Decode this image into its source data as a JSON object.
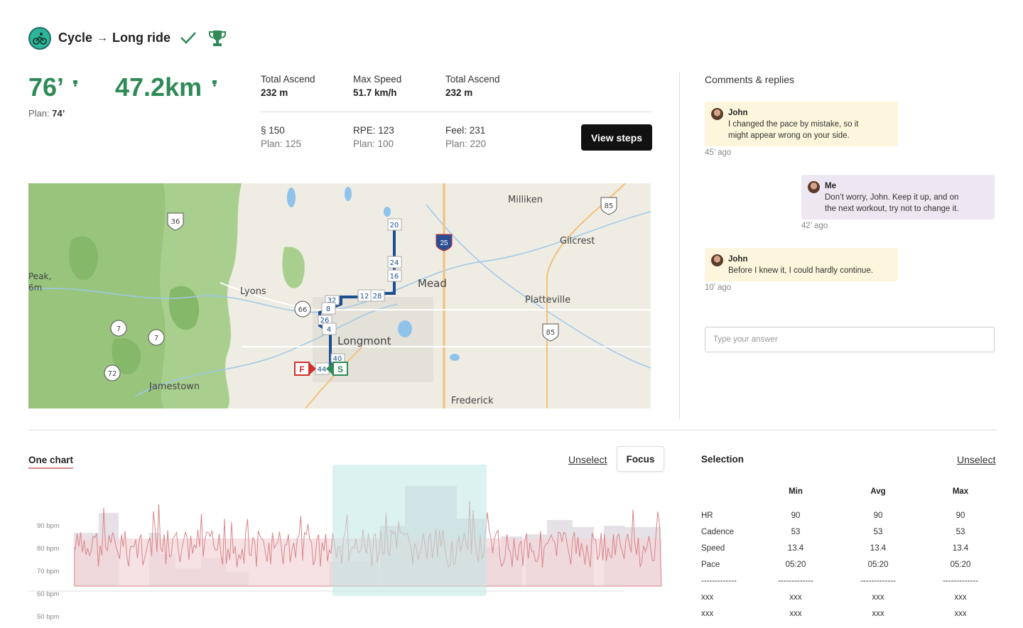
{
  "header": {
    "sport": "Cycle",
    "arrow": "→",
    "title": "Long ride"
  },
  "stats": {
    "duration": "76’",
    "distance": "47.2km",
    "plan_label": "Plan:",
    "plan_value": "74’"
  },
  "metrics_top": [
    {
      "label": "Total Ascend",
      "value": "232 m"
    },
    {
      "label": "Max Speed",
      "value": "51.7 km/h"
    },
    {
      "label": "Total Ascend",
      "value": "232 m"
    }
  ],
  "metrics_bottom": [
    {
      "value": "§ 150",
      "plan": "Plan: 125"
    },
    {
      "value": "RPE: 123",
      "plan": "Plan: 100"
    },
    {
      "value": "Feel: 231",
      "plan": "Plan: 220"
    }
  ],
  "view_steps_label": "View steps",
  "map": {
    "places": [
      "Milliken",
      "Gilcrest",
      "Mead",
      "Platteville",
      "Lyons",
      "Longmont",
      "Jamestown",
      "Frederick",
      "Peak,",
      "6m"
    ],
    "highways": [
      "36",
      "85",
      "25",
      "66",
      "7",
      "7",
      "72",
      "85"
    ],
    "route_markers": [
      "20",
      "24",
      "16",
      "12",
      "28",
      "32",
      "8",
      "26",
      "4",
      "40",
      "44"
    ],
    "start_label": "S",
    "finish_label": "F"
  },
  "comments": {
    "title": "Comments & replies",
    "items": [
      {
        "author": "John",
        "text1": "I changed the pace by mistake, so it",
        "text2": "might appear wrong on your side.",
        "ago": "45’ ago"
      },
      {
        "author": "Me",
        "text1": "Don’t worry, John. Keep it up, and on",
        "text2": "the next workout, try not to change it.",
        "ago": "42’ ago"
      },
      {
        "author": "John",
        "text1": "Before I knew it, I could hardly continue.",
        "text2": "",
        "ago": "10’ ago"
      }
    ],
    "answer_placeholder": "Type your answer"
  },
  "chart_section": {
    "tab_label": "One chart",
    "unselect_label": "Unselect",
    "focus_label": "Focus"
  },
  "chart_data": {
    "type": "area",
    "y_ticks": [
      "90 bpm",
      "80 bpm",
      "70 bpm",
      "60 bpm",
      "50 bpm"
    ],
    "ylim": [
      50,
      90
    ],
    "series": [
      {
        "name": "",
        "color": "#d9868a"
      }
    ]
  },
  "selection": {
    "title": "Selection",
    "unselect_label": "Unselect",
    "columns": [
      "",
      "Min",
      "Avg",
      "Max"
    ],
    "rows": [
      [
        "HR",
        "90",
        "90",
        "90"
      ],
      [
        "Cadence",
        "53",
        "53",
        "53"
      ],
      [
        "Speed",
        "13.4",
        "13.4",
        "13.4"
      ],
      [
        "Pace",
        "05:20",
        "05:20",
        "05:20"
      ],
      [
        "-------------",
        "-------------",
        "-------------",
        "-------------"
      ],
      [
        "xxx",
        "xxx",
        "xxx",
        "xxx"
      ],
      [
        "xxx",
        "xxx",
        "xxx",
        "xxx"
      ]
    ]
  },
  "colors": {
    "accent_green": "#2f8a57",
    "chart_line": "#d9868a",
    "selection_band": "#bfe8e4"
  }
}
